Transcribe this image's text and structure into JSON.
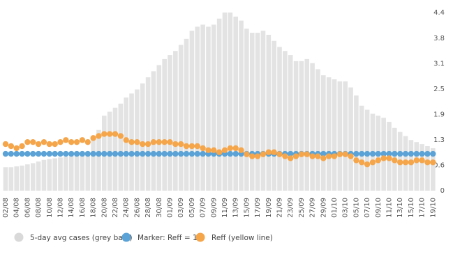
{
  "chart_data": {
    "type": "bar-markers",
    "categories": [
      "02/08",
      null,
      "04/08",
      null,
      "06/08",
      null,
      "08/08",
      null,
      "10/08",
      null,
      "12/08",
      null,
      "14/08",
      null,
      "16/08",
      null,
      "18/08",
      null,
      "20/08",
      null,
      "22/08",
      null,
      "24/08",
      null,
      "26/08",
      null,
      "28/08",
      null,
      "30/08",
      null,
      "01/09",
      null,
      "03/09",
      null,
      "05/09",
      null,
      "07/09",
      null,
      "09/09",
      null,
      "11/09",
      null,
      "13/09",
      null,
      "15/09",
      null,
      "17/09",
      null,
      "19/09",
      null,
      "21/09",
      null,
      "23/09",
      null,
      "25/09",
      null,
      "27/09",
      null,
      "29/09",
      null,
      "01/10",
      null,
      "03/10",
      null,
      "05/10",
      null,
      "07/10",
      null,
      "09/10",
      null,
      "11/10",
      null,
      "13/10",
      null,
      "15/10",
      null,
      "17/10",
      null,
      "19/10"
    ],
    "series": [
      {
        "name": "5-day avg cases (grey bars)",
        "color": "#e3e3e3",
        "values": [
          0.58,
          0.58,
          0.6,
          0.62,
          0.65,
          0.68,
          0.72,
          0.76,
          0.78,
          0.8,
          0.82,
          0.84,
          0.86,
          0.88,
          0.9,
          0.95,
          1.3,
          1.5,
          1.85,
          1.95,
          2.05,
          2.15,
          2.3,
          2.4,
          2.5,
          2.65,
          2.8,
          2.95,
          3.1,
          3.25,
          3.35,
          3.45,
          3.6,
          3.75,
          3.95,
          4.05,
          4.1,
          4.05,
          4.1,
          4.25,
          4.4,
          4.4,
          4.3,
          4.2,
          4.0,
          3.9,
          3.9,
          3.95,
          3.85,
          3.7,
          3.55,
          3.45,
          3.35,
          3.2,
          3.2,
          3.25,
          3.15,
          3.0,
          2.85,
          2.8,
          2.75,
          2.7,
          2.7,
          2.55,
          2.35,
          2.1,
          2.0,
          1.9,
          1.85,
          1.8,
          1.7,
          1.55,
          1.45,
          1.35,
          1.25,
          1.2,
          1.15,
          1.1,
          1.05
        ]
      },
      {
        "name": "Marker: Reff = 1",
        "color": "#5ba3d6",
        "values": [
          0.91,
          0.91,
          0.91,
          0.91,
          0.91,
          0.91,
          0.91,
          0.91,
          0.91,
          0.91,
          0.91,
          0.91,
          0.91,
          0.91,
          0.91,
          0.91,
          0.91,
          0.91,
          0.91,
          0.91,
          0.91,
          0.91,
          0.91,
          0.91,
          0.91,
          0.91,
          0.91,
          0.91,
          0.91,
          0.91,
          0.91,
          0.91,
          0.91,
          0.91,
          0.91,
          0.91,
          0.91,
          0.91,
          0.91,
          0.91,
          0.91,
          0.91,
          0.91,
          0.91,
          0.91,
          0.91,
          0.91,
          0.91,
          0.91,
          0.91,
          0.91,
          0.91,
          0.91,
          0.91,
          0.91,
          0.91,
          0.91,
          0.91,
          0.91,
          0.91,
          0.91,
          0.91,
          0.91,
          0.91,
          0.91,
          0.91,
          0.91,
          0.91,
          0.91,
          0.91,
          0.91,
          0.91,
          0.91,
          0.91,
          0.91,
          0.91,
          0.91,
          0.91,
          0.91
        ]
      },
      {
        "name": "Reff (yellow line)",
        "color": "#f5a54a",
        "values": [
          1.15,
          1.1,
          1.05,
          1.1,
          1.2,
          1.2,
          1.15,
          1.2,
          1.15,
          1.15,
          1.2,
          1.25,
          1.2,
          1.2,
          1.25,
          1.2,
          1.3,
          1.35,
          1.4,
          1.4,
          1.4,
          1.35,
          1.25,
          1.2,
          1.2,
          1.15,
          1.15,
          1.2,
          1.2,
          1.2,
          1.2,
          1.15,
          1.15,
          1.1,
          1.1,
          1.1,
          1.05,
          1.0,
          1.0,
          0.95,
          1.0,
          1.05,
          1.05,
          1.0,
          0.9,
          0.85,
          0.85,
          0.9,
          0.95,
          0.95,
          0.9,
          0.85,
          0.8,
          0.85,
          0.9,
          0.9,
          0.85,
          0.85,
          0.8,
          0.85,
          0.85,
          0.9,
          0.9,
          0.85,
          0.75,
          0.7,
          0.65,
          0.7,
          0.75,
          0.8,
          0.8,
          0.75,
          0.7,
          0.7,
          0.7,
          0.75,
          0.75,
          0.7,
          0.7
        ]
      }
    ],
    "ylim": [
      0,
      4.4
    ],
    "yticks": [
      0,
      {
        "value": 0.628,
        "label": "0.6"
      },
      {
        "value": 1.256,
        "label": "1.3"
      },
      {
        "value": 1.884,
        "label": "1.9"
      },
      {
        "value": 2.512,
        "label": "2.5"
      },
      {
        "value": 3.14,
        "label": "3.1"
      },
      {
        "value": 3.768,
        "label": "3.8"
      },
      {
        "value": 4.396,
        "label": "4.4"
      }
    ]
  }
}
